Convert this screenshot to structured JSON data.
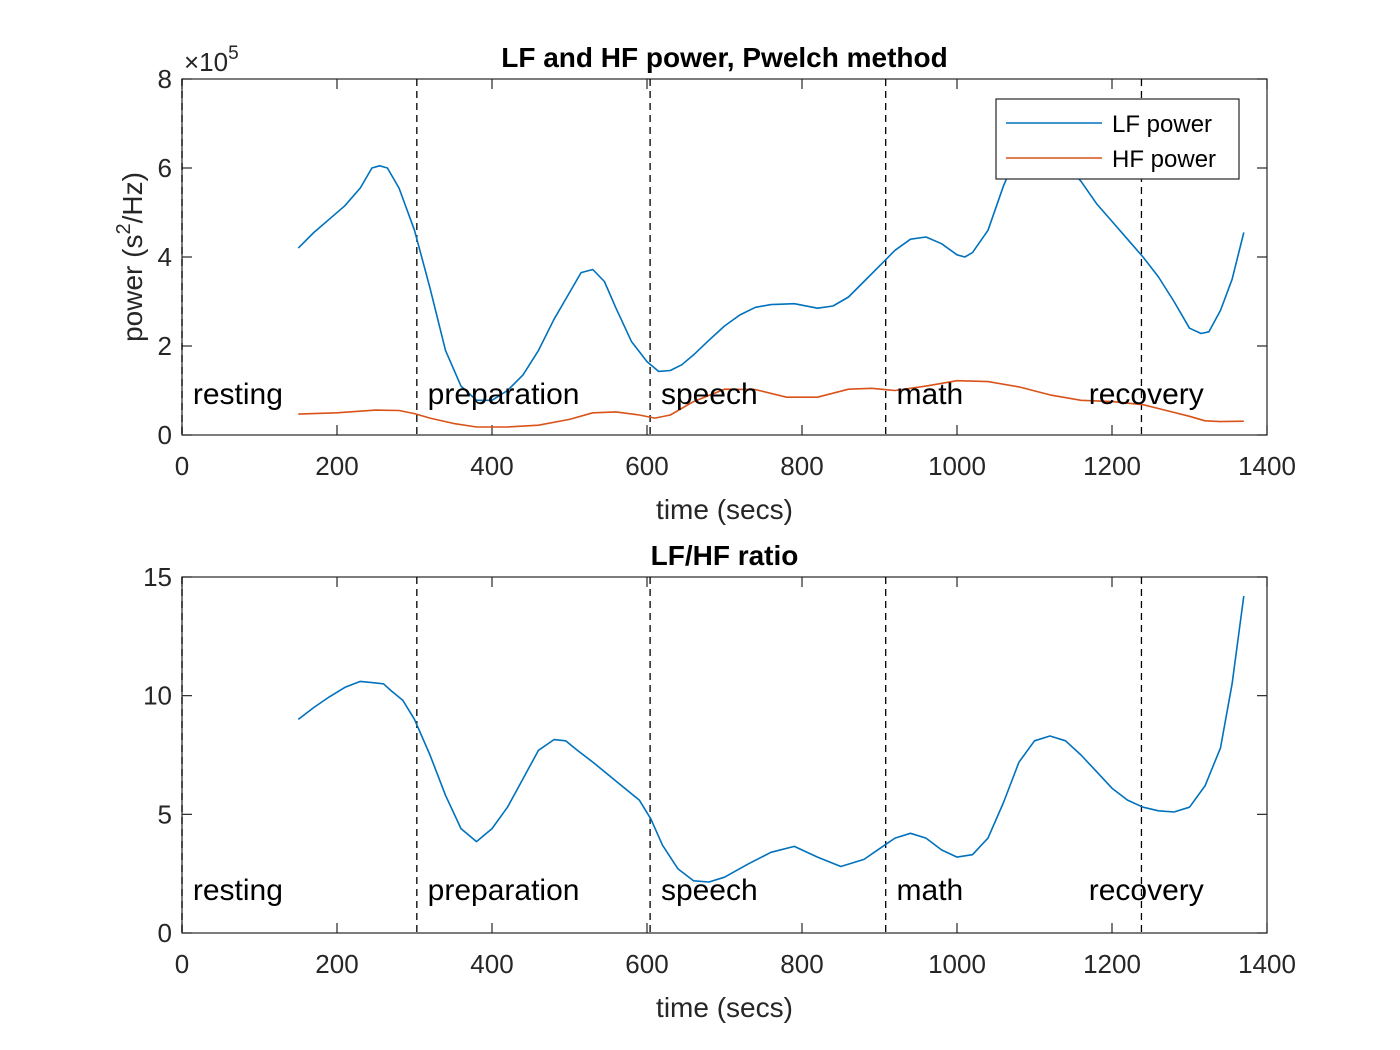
{
  "chart_data": [
    {
      "type": "line",
      "title": "LF and HF power, Pwelch method",
      "xlabel": "time (secs)",
      "ylabel": "power (s²/Hz)",
      "ylabel_base": "power (s",
      "ylabel_sup": "2",
      "ylabel_tail": "/Hz)",
      "y_exponent_label": "×10",
      "y_exponent": "5",
      "xlim": [
        0,
        1400
      ],
      "ylim": [
        0,
        800000
      ],
      "xticks": [
        0,
        200,
        400,
        600,
        800,
        1000,
        1200,
        1400
      ],
      "yticks": [
        0,
        200000,
        400000,
        600000,
        800000
      ],
      "ytick_labels": [
        "0",
        "2",
        "4",
        "6",
        "8"
      ],
      "legend_position": "top-right",
      "phase_boundaries": [
        0,
        303,
        604,
        908,
        1238
      ],
      "phase_labels": [
        {
          "label": "resting",
          "x": 14
        },
        {
          "label": "preparation",
          "x": 317
        },
        {
          "label": "speech",
          "x": 618
        },
        {
          "label": "math",
          "x": 922
        },
        {
          "label": "recovery",
          "x": 1170
        }
      ],
      "phase_label_y": 70000,
      "series": [
        {
          "name": "LF power",
          "color": "#0072BD",
          "x": [
            150,
            170,
            190,
            210,
            230,
            245,
            255,
            265,
            280,
            300,
            320,
            340,
            360,
            380,
            400,
            420,
            440,
            460,
            480,
            500,
            515,
            530,
            545,
            560,
            580,
            600,
            615,
            630,
            645,
            660,
            680,
            700,
            720,
            740,
            760,
            790,
            820,
            840,
            860,
            880,
            900,
            920,
            940,
            960,
            980,
            1000,
            1010,
            1020,
            1040,
            1060,
            1080,
            1100,
            1120,
            1140,
            1160,
            1180,
            1200,
            1220,
            1240,
            1260,
            1280,
            1300,
            1315,
            1325,
            1340,
            1355,
            1370
          ],
          "y": [
            420000,
            455000,
            485000,
            515000,
            555000,
            600000,
            605000,
            600000,
            555000,
            460000,
            330000,
            190000,
            110000,
            78000,
            78000,
            100000,
            135000,
            190000,
            260000,
            320000,
            365000,
            372000,
            345000,
            285000,
            210000,
            165000,
            143000,
            145000,
            158000,
            180000,
            213000,
            245000,
            270000,
            287000,
            293000,
            295000,
            285000,
            290000,
            310000,
            345000,
            380000,
            415000,
            440000,
            445000,
            430000,
            405000,
            400000,
            410000,
            460000,
            560000,
            640000,
            640000,
            630000,
            610000,
            570000,
            520000,
            480000,
            440000,
            400000,
            355000,
            300000,
            240000,
            228000,
            232000,
            280000,
            350000,
            455000
          ]
        },
        {
          "name": "HF power",
          "color": "#D95319",
          "x": [
            150,
            200,
            250,
            280,
            300,
            320,
            350,
            380,
            420,
            460,
            500,
            530,
            560,
            590,
            610,
            630,
            660,
            700,
            740,
            780,
            820,
            860,
            890,
            920,
            960,
            1000,
            1040,
            1080,
            1120,
            1160,
            1200,
            1240,
            1270,
            1300,
            1320,
            1340,
            1370
          ],
          "y": [
            47000,
            50000,
            56000,
            55000,
            48000,
            38000,
            26000,
            18000,
            18000,
            22000,
            35000,
            50000,
            52000,
            45000,
            38000,
            45000,
            75000,
            103000,
            102000,
            85000,
            85000,
            103000,
            105000,
            100000,
            110000,
            122000,
            120000,
            108000,
            90000,
            78000,
            75000,
            68000,
            55000,
            42000,
            32000,
            30000,
            31000
          ]
        }
      ]
    },
    {
      "type": "line",
      "title": "LF/HF ratio",
      "xlabel": "time (secs)",
      "ylabel": "",
      "xlim": [
        0,
        1400
      ],
      "ylim": [
        0,
        15
      ],
      "xticks": [
        0,
        200,
        400,
        600,
        800,
        1000,
        1200,
        1400
      ],
      "yticks": [
        0,
        5,
        10,
        15
      ],
      "ytick_labels": [
        "0",
        "5",
        "10",
        "15"
      ],
      "phase_boundaries": [
        0,
        303,
        604,
        908,
        1238
      ],
      "phase_labels": [
        {
          "label": "resting",
          "x": 14
        },
        {
          "label": "preparation",
          "x": 317
        },
        {
          "label": "speech",
          "x": 618
        },
        {
          "label": "math",
          "x": 922
        },
        {
          "label": "recovery",
          "x": 1170
        }
      ],
      "phase_label_y": 1.4,
      "series": [
        {
          "name": "",
          "color": "#0072BD",
          "x": [
            150,
            170,
            190,
            210,
            230,
            245,
            260,
            270,
            285,
            300,
            320,
            340,
            360,
            380,
            400,
            420,
            440,
            460,
            480,
            495,
            510,
            530,
            560,
            590,
            605,
            620,
            640,
            660,
            680,
            700,
            730,
            760,
            790,
            820,
            850,
            880,
            900,
            920,
            940,
            960,
            980,
            1000,
            1020,
            1040,
            1060,
            1080,
            1100,
            1120,
            1140,
            1160,
            1180,
            1200,
            1220,
            1240,
            1260,
            1280,
            1300,
            1320,
            1340,
            1355,
            1370
          ],
          "y": [
            9.0,
            9.5,
            9.95,
            10.35,
            10.6,
            10.55,
            10.5,
            10.2,
            9.8,
            9.0,
            7.5,
            5.8,
            4.4,
            3.85,
            4.4,
            5.3,
            6.5,
            7.7,
            8.15,
            8.1,
            7.7,
            7.2,
            6.4,
            5.6,
            4.8,
            3.7,
            2.7,
            2.2,
            2.15,
            2.35,
            2.9,
            3.4,
            3.65,
            3.2,
            2.8,
            3.1,
            3.55,
            4.0,
            4.2,
            4.0,
            3.5,
            3.2,
            3.3,
            4.0,
            5.5,
            7.2,
            8.1,
            8.3,
            8.1,
            7.5,
            6.8,
            6.1,
            5.6,
            5.3,
            5.15,
            5.1,
            5.3,
            6.2,
            7.8,
            10.5,
            14.2
          ]
        }
      ]
    }
  ]
}
